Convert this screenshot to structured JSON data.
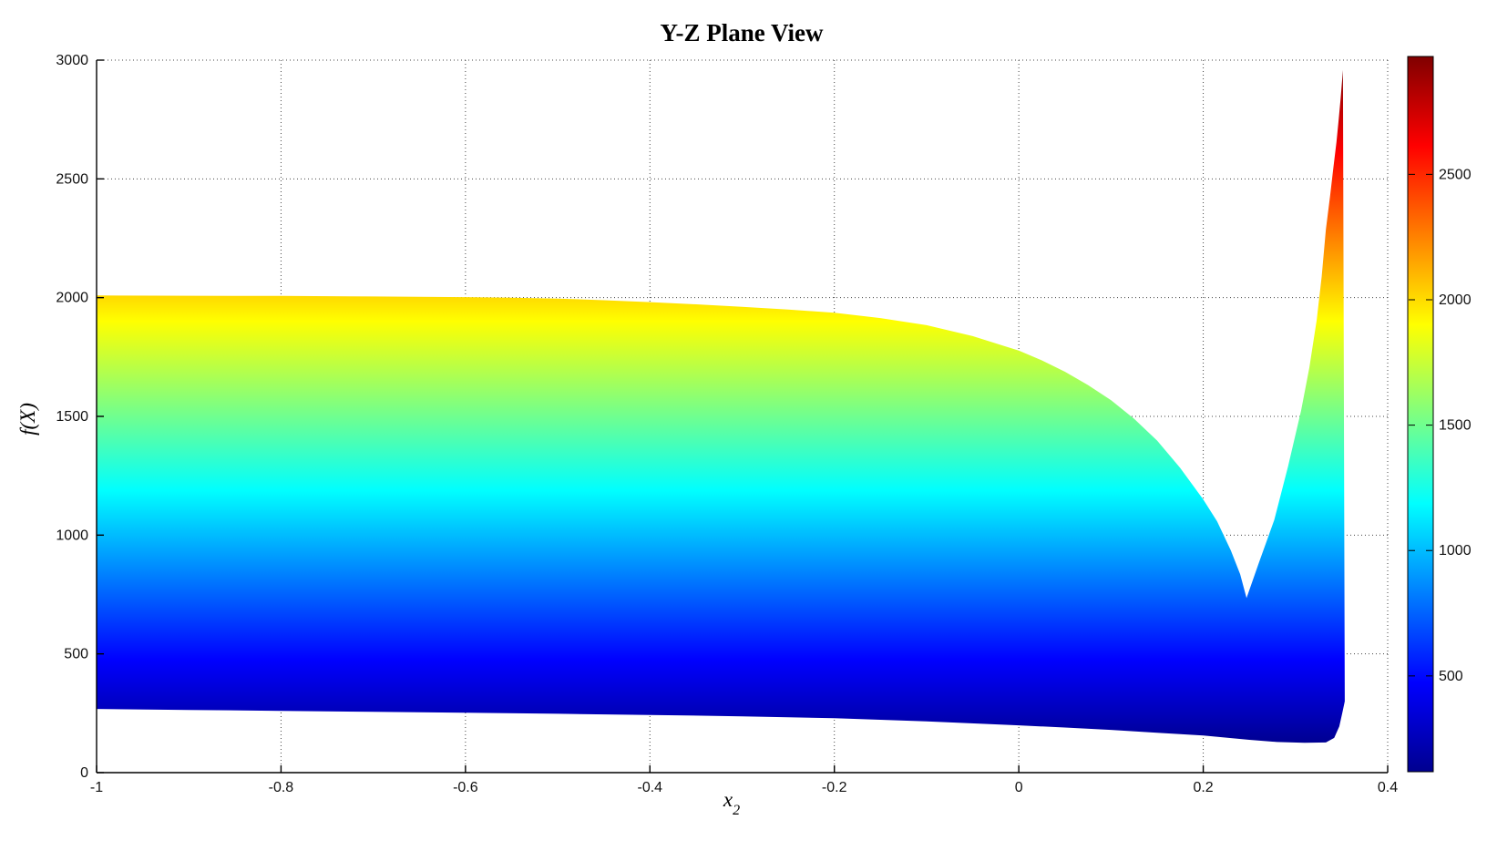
{
  "figure": {
    "background": "#ffffff"
  },
  "chart_data": {
    "type": "area",
    "description": "Side (Y-Z plane) silhouette view of a 3D surface f(X) vs x2, filled with jet colormap banded by f value",
    "title": "Y-Z Plane View",
    "xlabel_main": "x",
    "xlabel_sub": "2",
    "ylabel": "f(X)",
    "xlim": [
      -1,
      0.4
    ],
    "ylim": [
      0,
      3000
    ],
    "x_ticks": [
      -1,
      -0.8,
      -0.6,
      -0.4,
      -0.2,
      0,
      0.2,
      0.4
    ],
    "x_tick_labels": [
      "-1",
      "-0.8",
      "-0.6",
      "-0.4",
      "-0.2",
      "0",
      "0.2",
      "0.4"
    ],
    "y_ticks": [
      0,
      500,
      1000,
      1500,
      2000,
      2500,
      3000
    ],
    "y_tick_labels": [
      "0",
      "500",
      "1000",
      "1500",
      "2000",
      "2500",
      "3000"
    ],
    "grid": true,
    "grid_style": "dotted",
    "colormap": "jet",
    "color_range": [
      118,
      2970
    ],
    "colorbar_ticks": [
      500,
      1000,
      1500,
      2000,
      2500
    ],
    "colorbar_tick_labels": [
      "500",
      "1000",
      "1500",
      "2000",
      "2500"
    ],
    "upper_edge": [
      [
        -1,
        2009
      ],
      [
        -0.9,
        2008
      ],
      [
        -0.8,
        2007
      ],
      [
        -0.7,
        2005
      ],
      [
        -0.6,
        2002
      ],
      [
        -0.55,
        2000
      ],
      [
        -0.5,
        1996
      ],
      [
        -0.45,
        1989
      ],
      [
        -0.4,
        1981
      ],
      [
        -0.35,
        1972
      ],
      [
        -0.3,
        1961
      ],
      [
        -0.25,
        1950
      ],
      [
        -0.2,
        1936
      ],
      [
        -0.15,
        1914
      ],
      [
        -0.1,
        1884
      ],
      [
        -0.05,
        1838
      ],
      [
        0,
        1777
      ],
      [
        0.025,
        1736
      ],
      [
        0.05,
        1688
      ],
      [
        0.075,
        1632
      ],
      [
        0.1,
        1568
      ],
      [
        0.125,
        1490
      ],
      [
        0.15,
        1398
      ],
      [
        0.175,
        1283
      ],
      [
        0.2,
        1150
      ],
      [
        0.215,
        1058
      ],
      [
        0.23,
        935
      ],
      [
        0.24,
        835
      ],
      [
        0.247,
        735
      ],
      [
        0.26,
        880
      ],
      [
        0.277,
        1064
      ],
      [
        0.292,
        1290
      ],
      [
        0.306,
        1523
      ],
      [
        0.315,
        1705
      ],
      [
        0.323,
        1906
      ],
      [
        0.3285,
        2090
      ],
      [
        0.333,
        2288
      ],
      [
        0.3375,
        2425
      ],
      [
        0.341,
        2544
      ],
      [
        0.3445,
        2655
      ],
      [
        0.3467,
        2745
      ],
      [
        0.349,
        2840
      ],
      [
        0.3515,
        2958
      ]
    ],
    "lower_edge": [
      [
        -1,
        268
      ],
      [
        -0.9,
        264
      ],
      [
        -0.8,
        260
      ],
      [
        -0.7,
        256
      ],
      [
        -0.6,
        252
      ],
      [
        -0.5,
        248
      ],
      [
        -0.4,
        243
      ],
      [
        -0.3,
        237
      ],
      [
        -0.2,
        229
      ],
      [
        -0.1,
        216
      ],
      [
        0,
        199
      ],
      [
        0.05,
        190
      ],
      [
        0.1,
        180
      ],
      [
        0.15,
        168
      ],
      [
        0.2,
        156
      ],
      [
        0.25,
        138
      ],
      [
        0.28,
        129
      ],
      [
        0.31,
        126
      ],
      [
        0.333,
        127
      ],
      [
        0.342,
        146
      ],
      [
        0.3475,
        195
      ],
      [
        0.351,
        255
      ],
      [
        0.3535,
        300
      ]
    ],
    "valley_point": [
      0.247,
      735
    ],
    "peak_point": [
      0.3515,
      2958
    ]
  },
  "colors": {
    "jet_stops": [
      [
        "0",
        "#00008F"
      ],
      [
        "0.125",
        "#0000FF"
      ],
      [
        "0.375",
        "#00FFFF"
      ],
      [
        "0.625",
        "#FFFF00"
      ],
      [
        "0.875",
        "#FF0000"
      ],
      [
        "1",
        "#800000"
      ]
    ],
    "axis": "#000000",
    "grid": "#444444",
    "tick_label": "#111111"
  }
}
